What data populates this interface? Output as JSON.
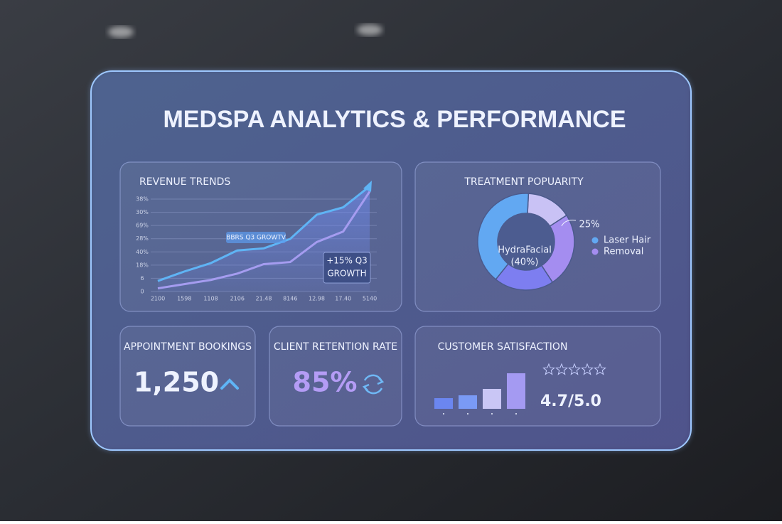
{
  "header": {
    "title": "MEDSPA ANALYTICS & PERFORMANCE"
  },
  "revenue_trends": {
    "type": "line",
    "title": "REVENUE TRENDS",
    "categories": [
      "2100",
      "1598",
      "1108",
      "2106",
      "21.48",
      "8146",
      "12.98",
      "17.40",
      "5140"
    ],
    "ylim": [
      0,
      100
    ],
    "ytick_labels": [
      "38%",
      "30%",
      "69%",
      "28%",
      "40%",
      "18%",
      "6",
      "0"
    ],
    "series": [
      {
        "color": "#5fb4f5",
        "values": [
          10,
          19,
          27,
          39,
          41,
          50,
          73,
          80,
          100
        ]
      },
      {
        "color": "#a59cf0",
        "values": [
          3,
          7,
          11,
          17,
          26,
          28,
          47,
          57,
          95
        ]
      }
    ],
    "annotations": [
      "BBRS Q3 GROWTV",
      "+15% Q3",
      "GROWTH"
    ]
  },
  "treatment_popularity": {
    "type": "pie",
    "title": "TREATMENT POPUARITY",
    "values": [
      15,
      25,
      20,
      40
    ],
    "colors": [
      "#c9c2f5",
      "#a48df0",
      "#7d7ef0",
      "#62a8f2"
    ],
    "center_label": [
      "HydraFacial",
      "(40%)"
    ],
    "value_label": "25%",
    "legend": [
      "Laser Hair",
      "Removal"
    ]
  },
  "appointment_bookings": {
    "title": "APPOINTMENT BOOKINGS",
    "value": "1,250"
  },
  "client_retention": {
    "title": "CLIENT RETENTION RATE",
    "value": "85%"
  },
  "customer_satisfaction": {
    "type": "bar",
    "title": "CUSTOMER SATISFACTION",
    "values": [
      15,
      19,
      28,
      50
    ],
    "colors": [
      "#6b86f0",
      "#7a9af5",
      "#c9c6f5",
      "#a49af2"
    ],
    "score": "4.7/5.0"
  }
}
